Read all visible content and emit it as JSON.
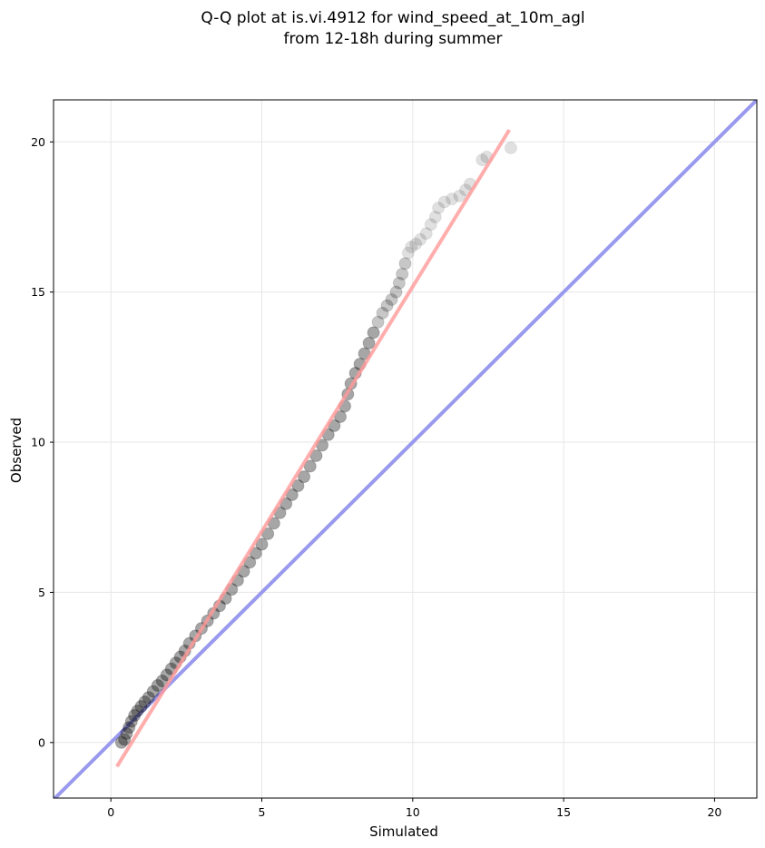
{
  "chart_data": {
    "type": "scatter",
    "title_line1": "Q-Q plot at is.vi.4912 for wind_speed_at_10m_agl",
    "title_line2": "from 12-18h during summer",
    "xlabel": "Simulated",
    "ylabel": "Observed",
    "xlim": [
      -1.9,
      21.4
    ],
    "ylim": [
      -1.85,
      21.4
    ],
    "xticks": [
      0,
      5,
      10,
      15,
      20
    ],
    "yticks": [
      0,
      5,
      10,
      15,
      20
    ],
    "xtick_labels": [
      "0",
      "5",
      "10",
      "15",
      "20"
    ],
    "ytick_labels": [
      "0",
      "5",
      "10",
      "15",
      "20"
    ],
    "grid": true,
    "quantile_points": [
      [
        0.35,
        0.0
      ],
      [
        0.45,
        0.1
      ],
      [
        0.52,
        0.3
      ],
      [
        0.6,
        0.5
      ],
      [
        0.68,
        0.7
      ],
      [
        0.78,
        0.9
      ],
      [
        0.88,
        1.05
      ],
      [
        1.0,
        1.2
      ],
      [
        1.12,
        1.35
      ],
      [
        1.25,
        1.5
      ],
      [
        1.4,
        1.7
      ],
      [
        1.55,
        1.9
      ],
      [
        1.7,
        2.05
      ],
      [
        1.85,
        2.25
      ],
      [
        2.0,
        2.45
      ],
      [
        2.15,
        2.65
      ],
      [
        2.3,
        2.85
      ],
      [
        2.45,
        3.05
      ],
      [
        2.6,
        3.3
      ],
      [
        2.8,
        3.55
      ],
      [
        3.0,
        3.8
      ],
      [
        3.2,
        4.05
      ],
      [
        3.4,
        4.3
      ],
      [
        3.6,
        4.55
      ],
      [
        3.8,
        4.8
      ],
      [
        4.0,
        5.1
      ],
      [
        4.2,
        5.4
      ],
      [
        4.4,
        5.7
      ],
      [
        4.6,
        6.0
      ],
      [
        4.8,
        6.3
      ],
      [
        5.0,
        6.6
      ],
      [
        5.2,
        6.95
      ],
      [
        5.4,
        7.3
      ],
      [
        5.6,
        7.65
      ],
      [
        5.8,
        7.95
      ],
      [
        6.0,
        8.25
      ],
      [
        6.2,
        8.55
      ],
      [
        6.4,
        8.85
      ],
      [
        6.6,
        9.2
      ],
      [
        6.8,
        9.55
      ],
      [
        7.0,
        9.9
      ],
      [
        7.2,
        10.25
      ],
      [
        7.4,
        10.55
      ],
      [
        7.6,
        10.85
      ],
      [
        7.75,
        11.2
      ],
      [
        7.85,
        11.6
      ],
      [
        7.95,
        11.95
      ],
      [
        8.1,
        12.3
      ],
      [
        8.25,
        12.6
      ],
      [
        8.4,
        12.95
      ],
      [
        8.55,
        13.3
      ],
      [
        8.7,
        13.65
      ],
      [
        8.85,
        14.0
      ],
      [
        9.0,
        14.3
      ],
      [
        9.15,
        14.55
      ],
      [
        9.3,
        14.75
      ],
      [
        9.45,
        15.0
      ],
      [
        9.55,
        15.3
      ],
      [
        9.65,
        15.6
      ],
      [
        9.75,
        15.95
      ],
      [
        9.85,
        16.3
      ],
      [
        9.95,
        16.5
      ],
      [
        10.1,
        16.6
      ],
      [
        10.25,
        16.75
      ],
      [
        10.45,
        16.95
      ],
      [
        10.6,
        17.25
      ],
      [
        10.75,
        17.5
      ],
      [
        10.85,
        17.8
      ],
      [
        11.05,
        18.0
      ],
      [
        11.3,
        18.1
      ],
      [
        11.55,
        18.2
      ],
      [
        11.75,
        18.4
      ],
      [
        11.9,
        18.6
      ],
      [
        12.3,
        19.4
      ],
      [
        12.45,
        19.5
      ],
      [
        13.25,
        19.8
      ]
    ],
    "fit_line": {
      "x": [
        0.2,
        13.2
      ],
      "y": [
        -0.8,
        20.4
      ],
      "color": "#ff9999"
    },
    "reference_line": {
      "label": "y = x",
      "color": "#9999ee"
    },
    "point_color": "#000000"
  }
}
